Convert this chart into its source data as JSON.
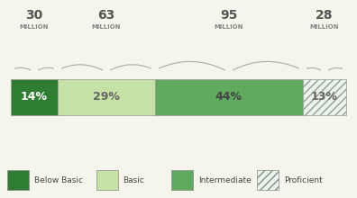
{
  "segments": [
    14,
    29,
    44,
    13
  ],
  "labels": [
    "14%",
    "29%",
    "44%",
    "13%"
  ],
  "colors": [
    "#2e7d32",
    "#c5e1a5",
    "#5faa5f",
    "#e8f5e9"
  ],
  "millions": [
    "30",
    "63",
    "95",
    "28"
  ],
  "legend_labels": [
    "Below Basic",
    "Basic",
    "Intermediate",
    "Proficient"
  ],
  "legend_colors": [
    "#2e7d32",
    "#c5e1a5",
    "#5faa5f",
    "#e8f5e9"
  ],
  "label_colors": [
    "#ffffff",
    "#666666",
    "#444444",
    "#666666"
  ],
  "background": "#f5f5eb",
  "brace_color": "#aaaaaa",
  "million_num_color": "#555555",
  "million_text_color": "#888888"
}
